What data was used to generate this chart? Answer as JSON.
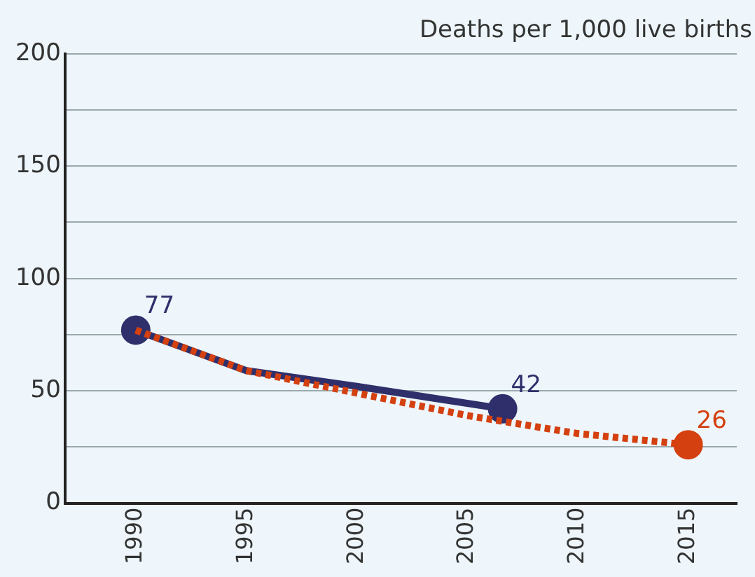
{
  "chart_data": {
    "type": "line",
    "ylabel": "Deaths per 1,000 live births",
    "xlim": [
      1986.8,
      2017.2
    ],
    "xticks": [
      1990,
      1995,
      2000,
      2005,
      2010,
      2015
    ],
    "ylim": [
      0,
      200
    ],
    "yticks": [
      0,
      {
        "value": 25,
        "label": null
      },
      50,
      {
        "value": 75,
        "label": null
      },
      100,
      {
        "value": 125,
        "label": null
      },
      150,
      {
        "value": 175,
        "label": null
      },
      200
    ],
    "grid": "y",
    "legend": false,
    "series": [
      {
        "color": "#d4400f",
        "line_style": "dotted",
        "x": [
          1990,
          1995,
          2000,
          2005,
          2010,
          2015
        ],
        "values": [
          77,
          59,
          49,
          39,
          31,
          26
        ],
        "value_labels": [
          null,
          null,
          null,
          null,
          null,
          "26"
        ]
      },
      {
        "color": "#2e2f6b",
        "line_style": "solid",
        "x": [
          1990,
          1995,
          2000,
          2006.6
        ],
        "values": [
          77,
          59,
          52,
          42
        ],
        "value_labels": [
          "77",
          null,
          null,
          "42"
        ]
      }
    ]
  }
}
